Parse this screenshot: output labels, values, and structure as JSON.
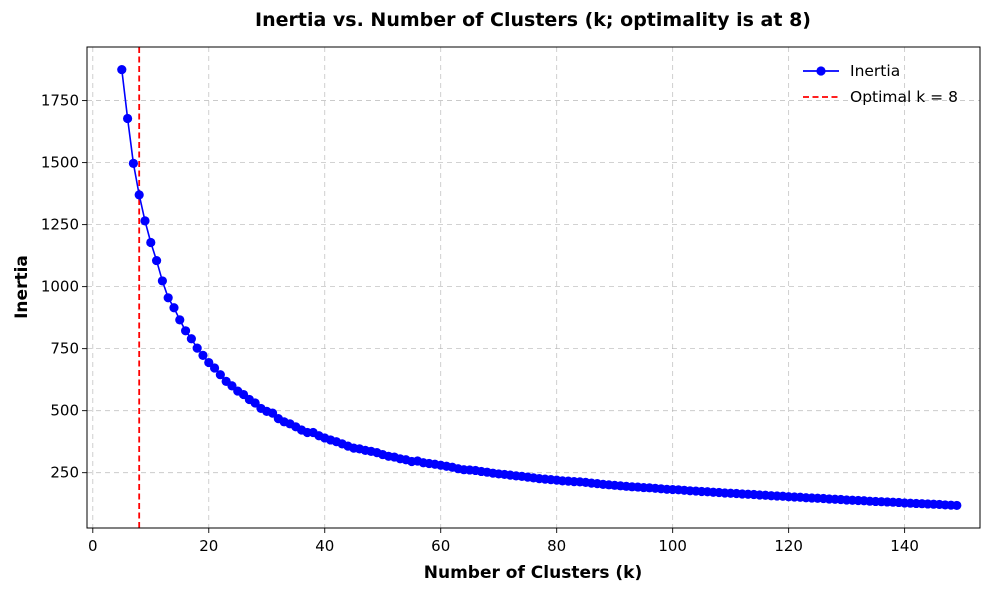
{
  "chart_data": {
    "type": "line",
    "title": "Inertia vs. Number of Clusters (k; optimality is at 8)",
    "xlabel": "Number of Clusters (k)",
    "ylabel": "Inertia",
    "xlim": [
      -1,
      153
    ],
    "ylim": [
      27,
      1966
    ],
    "xticks": [
      0,
      20,
      40,
      60,
      80,
      100,
      120,
      140
    ],
    "yticks": [
      250,
      500,
      750,
      1000,
      1250,
      1500,
      1750
    ],
    "grid": true,
    "legend_position": "top-right",
    "series": [
      {
        "name": "Inertia",
        "color": "#0000ff",
        "marker": "circle",
        "x": [
          5,
          6,
          7,
          8,
          9,
          10,
          11,
          12,
          13,
          14,
          15,
          16,
          17,
          18,
          19,
          20,
          21,
          22,
          23,
          24,
          25,
          26,
          27,
          28,
          29,
          30,
          31,
          32,
          33,
          34,
          35,
          36,
          37,
          38,
          39,
          40,
          41,
          42,
          43,
          44,
          45,
          46,
          47,
          48,
          49,
          50,
          51,
          52,
          53,
          54,
          55,
          56,
          57,
          58,
          59,
          60,
          61,
          62,
          63,
          64,
          65,
          66,
          67,
          68,
          69,
          70,
          71,
          72,
          73,
          74,
          75,
          76,
          77,
          78,
          79,
          80,
          81,
          82,
          83,
          84,
          85,
          86,
          87,
          88,
          89,
          90,
          91,
          92,
          93,
          94,
          95,
          96,
          97,
          98,
          99,
          100,
          101,
          102,
          103,
          104,
          105,
          106,
          107,
          108,
          109,
          110,
          111,
          112,
          113,
          114,
          115,
          116,
          117,
          118,
          119,
          120,
          121,
          122,
          123,
          124,
          125,
          126,
          127,
          128,
          129,
          130,
          131,
          132,
          133,
          134,
          135,
          136,
          137,
          138,
          139,
          140,
          141,
          142,
          143,
          144,
          145,
          146,
          147,
          148,
          149
        ],
        "values": [
          1875,
          1678,
          1497,
          1370,
          1265,
          1178,
          1105,
          1023,
          955,
          915,
          866,
          822,
          790,
          752,
          723,
          694,
          672,
          645,
          618,
          600,
          579,
          565,
          545,
          531,
          509,
          497,
          490,
          468,
          455,
          447,
          435,
          422,
          412,
          412,
          399,
          390,
          382,
          375,
          366,
          357,
          349,
          346,
          340,
          336,
          331,
          323,
          316,
          313,
          306,
          302,
          295,
          297,
          290,
          287,
          284,
          280,
          276,
          272,
          266,
          262,
          261,
          259,
          255,
          252,
          248,
          245,
          243,
          240,
          237,
          235,
          232,
          229,
          226,
          224,
          222,
          220,
          217,
          216,
          214,
          213,
          211,
          208,
          206,
          203,
          201,
          199,
          197,
          195,
          193,
          192,
          190,
          189,
          187,
          185,
          183,
          182,
          181,
          179,
          177,
          176,
          174,
          173,
          171,
          170,
          168,
          167,
          166,
          164,
          163,
          162,
          160,
          159,
          157,
          156,
          155,
          153,
          152,
          151,
          149,
          148,
          147,
          146,
          144,
          143,
          142,
          140,
          139,
          138,
          137,
          135,
          134,
          133,
          132,
          131,
          130,
          128,
          127,
          126,
          125,
          124,
          123,
          122,
          120,
          119,
          118
        ]
      },
      {
        "name": "Optimal k = 8",
        "color": "#ff0000",
        "style": "dashed",
        "x_value": 8
      }
    ]
  }
}
